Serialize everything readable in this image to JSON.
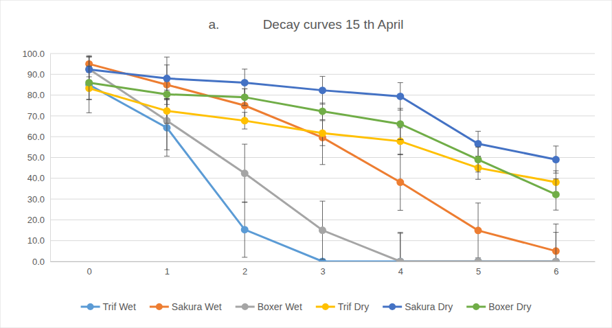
{
  "chart_data": {
    "type": "line",
    "title": "a.            Decay curves 15 th April",
    "categories": [
      "0",
      "1",
      "2",
      "3",
      "4",
      "5",
      "6"
    ],
    "ylim": [
      0,
      100
    ],
    "yticks": [
      {
        "value": 0,
        "label": "0.0"
      },
      {
        "value": 10,
        "label": "10.0"
      },
      {
        "value": 20,
        "label": "20.0"
      },
      {
        "value": 30,
        "label": "30.0"
      },
      {
        "value": 40,
        "label": "40.0"
      },
      {
        "value": 50,
        "label": "50.0"
      },
      {
        "value": 60,
        "label": "60.0"
      },
      {
        "value": 70,
        "label": "70.0"
      },
      {
        "value": 80,
        "label": "80.0"
      },
      {
        "value": 90,
        "label": "90.0"
      },
      {
        "value": 100,
        "label": "100.0"
      }
    ],
    "grid": true,
    "legend": "bottom",
    "marker": "circle",
    "series": [
      {
        "name": "Trif Wet",
        "color": "#5b9bd5",
        "values": [
          85,
          64.3,
          15.3,
          0,
          0,
          0,
          0
        ],
        "errors": [
          13.5,
          13.7,
          13.3,
          0,
          13.5,
          0,
          0
        ]
      },
      {
        "name": "Sakura Wet",
        "color": "#ed7d31",
        "values": [
          95,
          85,
          75,
          59.6,
          38.1,
          14.9,
          5
        ],
        "errors": [
          4,
          9.5,
          8,
          13,
          13.5,
          13.2,
          13
        ]
      },
      {
        "name": "Boxer Wet",
        "color": "#a5a5a5",
        "values": [
          92.5,
          67.7,
          42.4,
          15,
          0,
          0,
          0
        ],
        "errors": [
          6,
          14,
          14,
          14,
          14,
          0,
          14
        ]
      },
      {
        "name": "Trif Dry",
        "color": "#ffc000",
        "values": [
          83.3,
          72.4,
          67.7,
          61.7,
          57.8,
          45,
          38.1
        ],
        "errors": [
          5.5,
          6,
          4,
          6,
          6.5,
          5.5,
          5.5
        ]
      },
      {
        "name": "Sakura Dry",
        "color": "#4472c4",
        "values": [
          92.3,
          88,
          86,
          82.3,
          79.4,
          56.6,
          49
        ],
        "errors": [
          6,
          10.3,
          6.5,
          6.7,
          6.6,
          6,
          6.5
        ]
      },
      {
        "name": "Boxer Dry",
        "color": "#70ad47",
        "values": [
          86,
          80.4,
          79,
          72.2,
          66.1,
          49,
          32.2
        ],
        "errors": [
          8,
          2,
          4,
          4,
          7.5,
          6,
          7.5
        ]
      }
    ]
  }
}
